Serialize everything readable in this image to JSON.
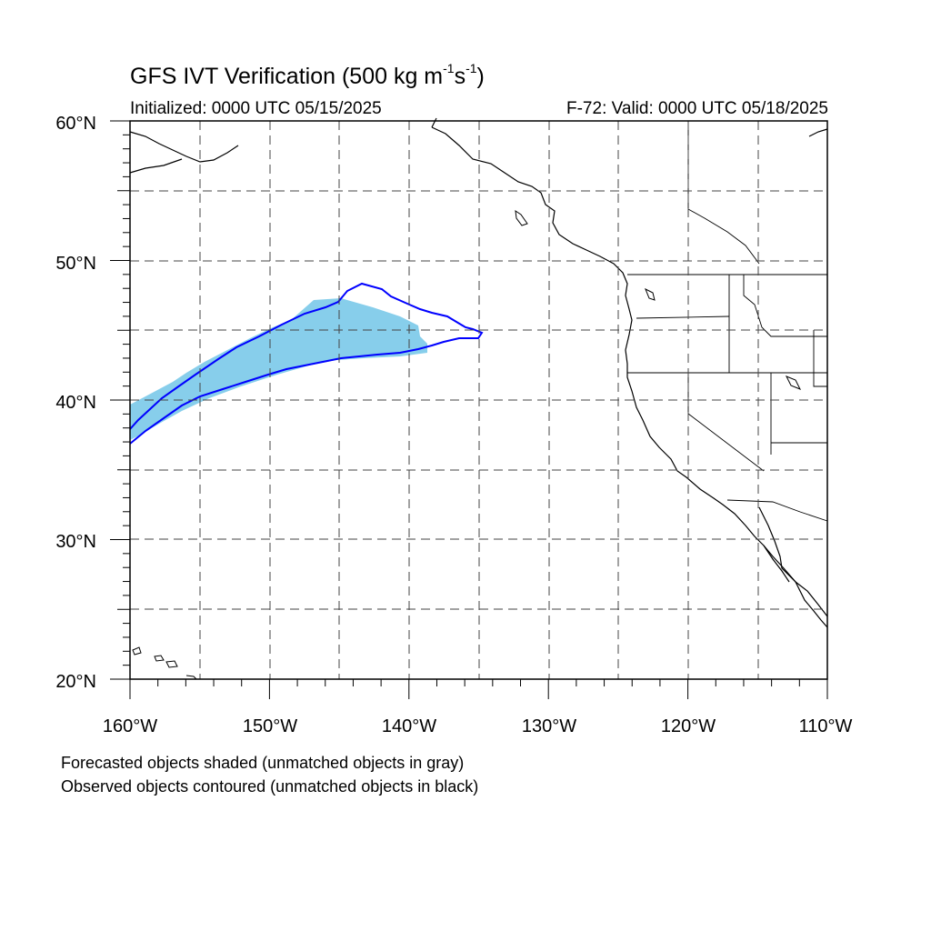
{
  "title": {
    "main": "GFS IVT Verification (500 kg m",
    "sup1": "-1",
    "mid": "s",
    "sup2": "-1",
    "end": ")"
  },
  "initialized": "Initialized: 0000 UTC 05/15/2025",
  "valid": "F-72: Valid: 0000 UTC 05/18/2025",
  "map": {
    "lon_range": [
      -160,
      -110
    ],
    "lat_range": [
      20,
      60
    ],
    "lat_tick_labels": [
      "60°N",
      "50°N",
      "40°N",
      "30°N",
      "20°N"
    ],
    "lon_tick_labels": [
      "160°W",
      "150°W",
      "140°W",
      "130°W",
      "120°W",
      "110°W"
    ],
    "gridlines": "dashed every 5°",
    "colors": {
      "forecast_fill": "#87ceeb",
      "observed_contour": "#0000ff",
      "coastline": "#000000"
    }
  },
  "legend_notes": [
    "Forecasted objects shaded (unmatched objects in gray)",
    "Observed objects contoured (unmatched objects in black)"
  ]
}
